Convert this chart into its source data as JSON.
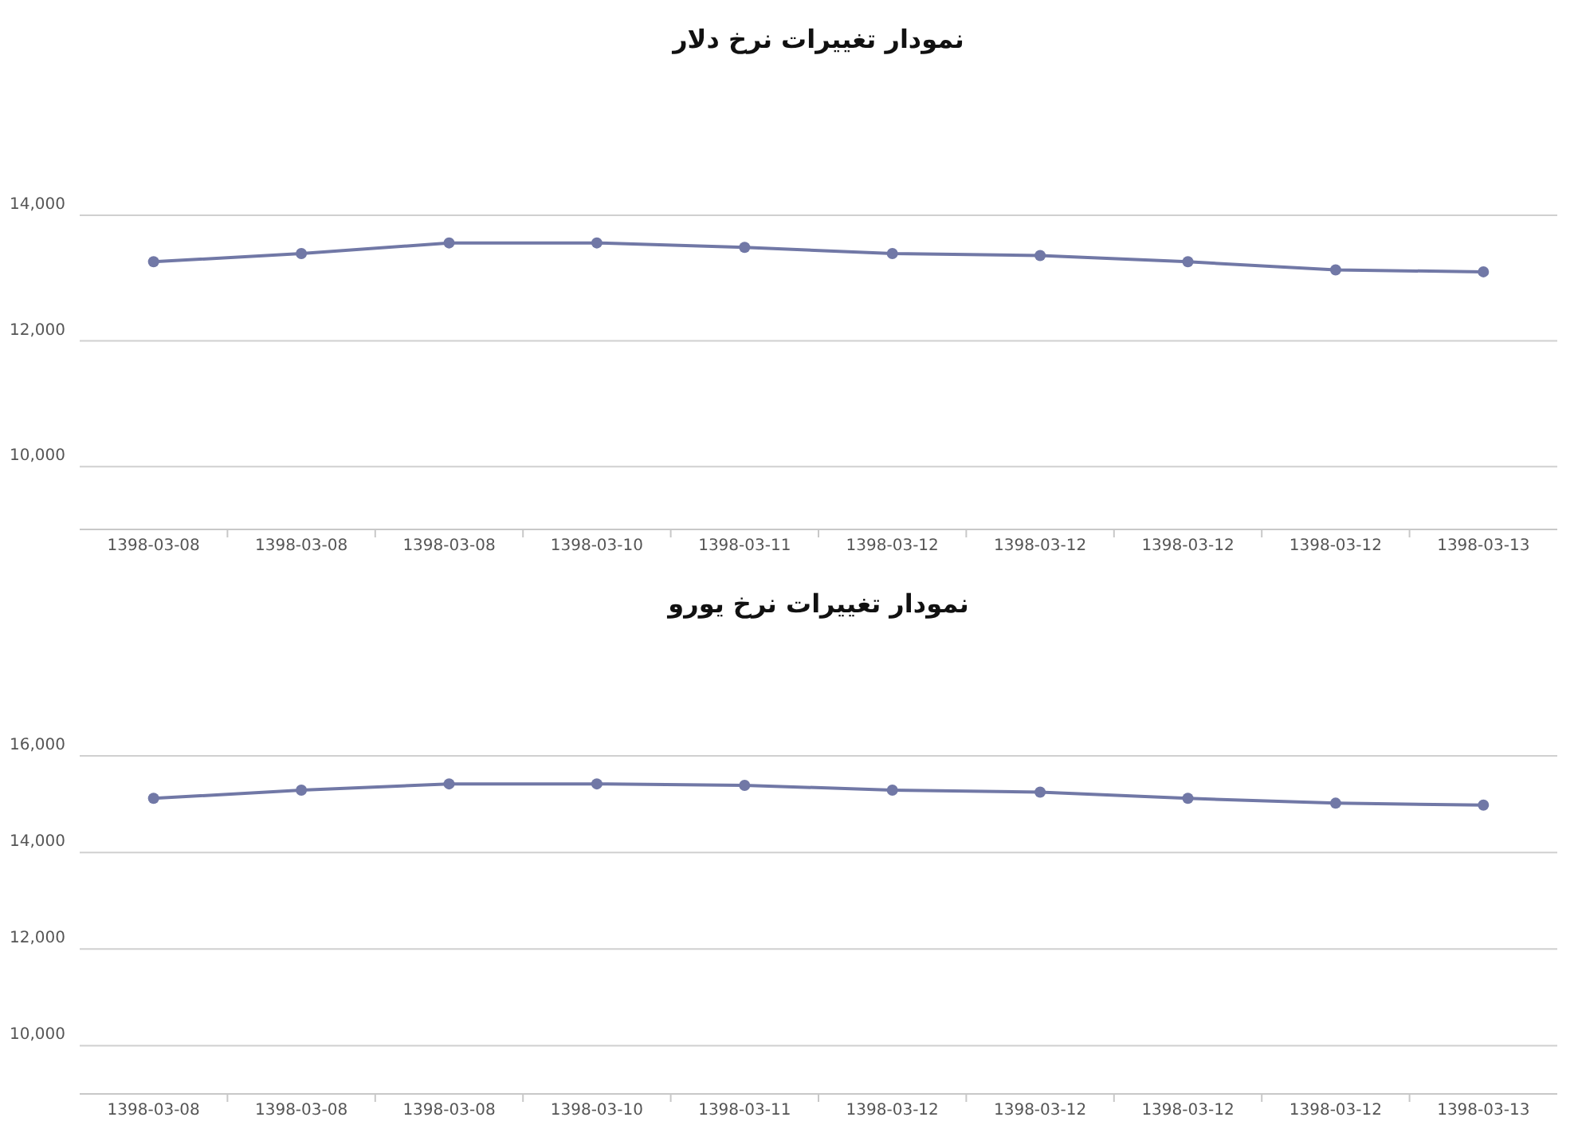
{
  "chart_data": [
    {
      "type": "line",
      "title": "نمودار تغییرات نرخ دلار",
      "categories": [
        "1398-03-08",
        "1398-03-08",
        "1398-03-08",
        "1398-03-10",
        "1398-03-11",
        "1398-03-12",
        "1398-03-12",
        "1398-03-12",
        "1398-03-12",
        "1398-03-13"
      ],
      "series": [
        {
          "color": "#7178a6",
          "values": [
            13260,
            13390,
            13560,
            13560,
            13490,
            13390,
            13360,
            13260,
            13130,
            13100
          ]
        }
      ],
      "ylim": [
        9000,
        14000
      ],
      "yticks": [
        {
          "value": 10000,
          "label": "10,000"
        },
        {
          "value": 12000,
          "label": "12,000"
        },
        {
          "value": 14000,
          "label": "14,000"
        }
      ],
      "grid": "y",
      "marker": "circle",
      "line_style": "solid"
    },
    {
      "type": "line",
      "title": "نمودار تغییرات نرخ یورو",
      "categories": [
        "1398-03-08",
        "1398-03-08",
        "1398-03-08",
        "1398-03-10",
        "1398-03-11",
        "1398-03-12",
        "1398-03-12",
        "1398-03-12",
        "1398-03-12",
        "1398-03-13"
      ],
      "series": [
        {
          "color": "#7178a6",
          "values": [
            15120,
            15290,
            15420,
            15420,
            15390,
            15290,
            15250,
            15120,
            15020,
            14980
          ]
        }
      ],
      "ylim": [
        9000,
        16000
      ],
      "yticks": [
        {
          "value": 10000,
          "label": "10,000"
        },
        {
          "value": 12000,
          "label": "12,000"
        },
        {
          "value": 14000,
          "label": "14,000"
        },
        {
          "value": 16000,
          "label": "16,000"
        }
      ],
      "grid": "y",
      "marker": "circle",
      "line_style": "solid"
    }
  ]
}
